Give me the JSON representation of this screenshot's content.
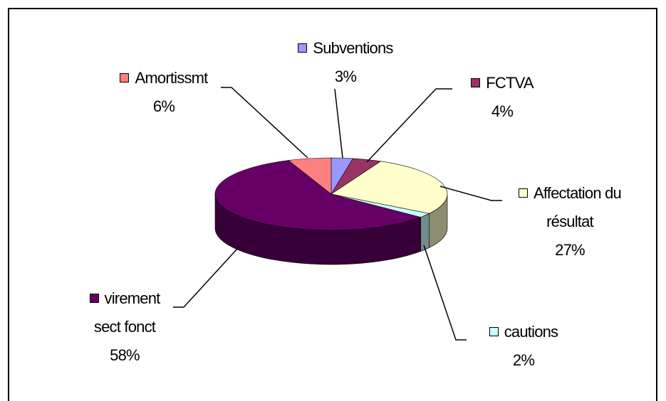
{
  "chart_data": {
    "type": "pie3d",
    "categories": [
      "Subventions",
      "FCTVA",
      "Affectation du résultat",
      "cautions",
      "virement sect fonct",
      "Amortissmt"
    ],
    "values": [
      3,
      4,
      27,
      2,
      58,
      6
    ],
    "value_labels": [
      "3%",
      "4%",
      "27%",
      "2%",
      "58%",
      "6%"
    ],
    "colors": [
      "#9999FF",
      "#993366",
      "#FFFFCC",
      "#CCFFFF",
      "#660066",
      "#FF8080"
    ]
  }
}
